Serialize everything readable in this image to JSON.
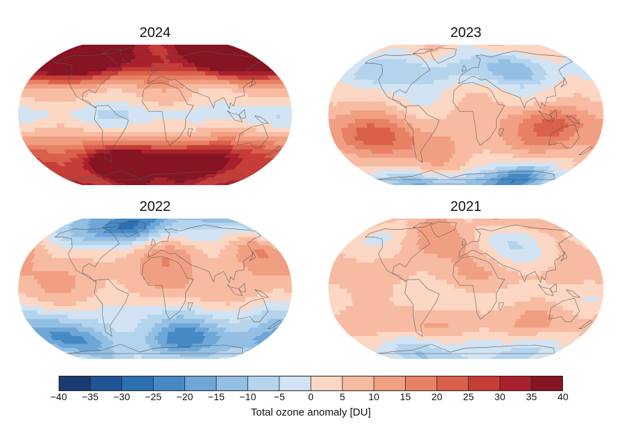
{
  "panels": [
    {
      "id": "p2024",
      "title": "2024",
      "bands": [
        32,
        26,
        22,
        14,
        6,
        3,
        -4,
        2,
        8,
        16,
        22,
        24,
        30
      ],
      "blobs": [
        {
          "lon": -130,
          "lat": 60,
          "v": 36
        },
        {
          "lon": 110,
          "lat": 65,
          "v": 34
        },
        {
          "lon": -60,
          "lat": -60,
          "v": 32
        },
        {
          "lon": 60,
          "lat": -58,
          "v": 28
        },
        {
          "lon": 0,
          "lat": -45,
          "v": 8
        },
        {
          "lon": 160,
          "lat": -40,
          "v": 10
        },
        {
          "lon": -20,
          "lat": 60,
          "v": 10
        }
      ]
    },
    {
      "id": "p2023",
      "title": "2023",
      "bands": [
        4,
        2,
        -3,
        -4,
        2,
        3,
        6,
        8,
        10,
        9,
        6,
        -6,
        -14
      ],
      "blobs": [
        {
          "lon": 60,
          "lat": 55,
          "v": -8
        },
        {
          "lon": -80,
          "lat": 45,
          "v": -6
        },
        {
          "lon": 120,
          "lat": -10,
          "v": 14
        },
        {
          "lon": -120,
          "lat": -25,
          "v": 12
        },
        {
          "lon": 100,
          "lat": -70,
          "v": -18
        }
      ]
    },
    {
      "id": "p2022",
      "title": "2022",
      "bands": [
        -14,
        -8,
        -4,
        3,
        7,
        9,
        8,
        4,
        -3,
        -6,
        -10,
        -8,
        -6
      ],
      "blobs": [
        {
          "lon": -60,
          "lat": 72,
          "v": -22
        },
        {
          "lon": 20,
          "lat": 45,
          "v": 8
        },
        {
          "lon": 150,
          "lat": 45,
          "v": 8
        },
        {
          "lon": 60,
          "lat": -55,
          "v": -14
        },
        {
          "lon": -150,
          "lat": -55,
          "v": -12
        }
      ]
    },
    {
      "id": "p2021",
      "title": "2021",
      "bands": [
        8,
        6,
        2,
        3,
        6,
        8,
        4,
        3,
        8,
        10,
        4,
        -2,
        -5
      ],
      "blobs": [
        {
          "lon": 60,
          "lat": 50,
          "v": -6
        },
        {
          "lon": -30,
          "lat": 55,
          "v": 12
        },
        {
          "lon": -60,
          "lat": -70,
          "v": -8
        },
        {
          "lon": 120,
          "lat": -65,
          "v": -6
        }
      ]
    }
  ],
  "colorbar": {
    "ticks": [
      "−40",
      "−35",
      "−30",
      "−25",
      "−20",
      "−15",
      "−10",
      "−5",
      "0",
      "5",
      "10",
      "15",
      "20",
      "25",
      "30",
      "35",
      "40"
    ],
    "min": -40,
    "max": 40,
    "step": 5,
    "colors": [
      "#1a3a72",
      "#1f5496",
      "#2c6fb0",
      "#4789c4",
      "#6ea6d6",
      "#93bfe3",
      "#b4d3ec",
      "#d2e4f3",
      "#fbd7c4",
      "#f7bba2",
      "#f19f82",
      "#e78165",
      "#d9604b",
      "#c63d38",
      "#a8212c",
      "#861422"
    ],
    "label": "Total ozone anomaly [DU]"
  }
}
